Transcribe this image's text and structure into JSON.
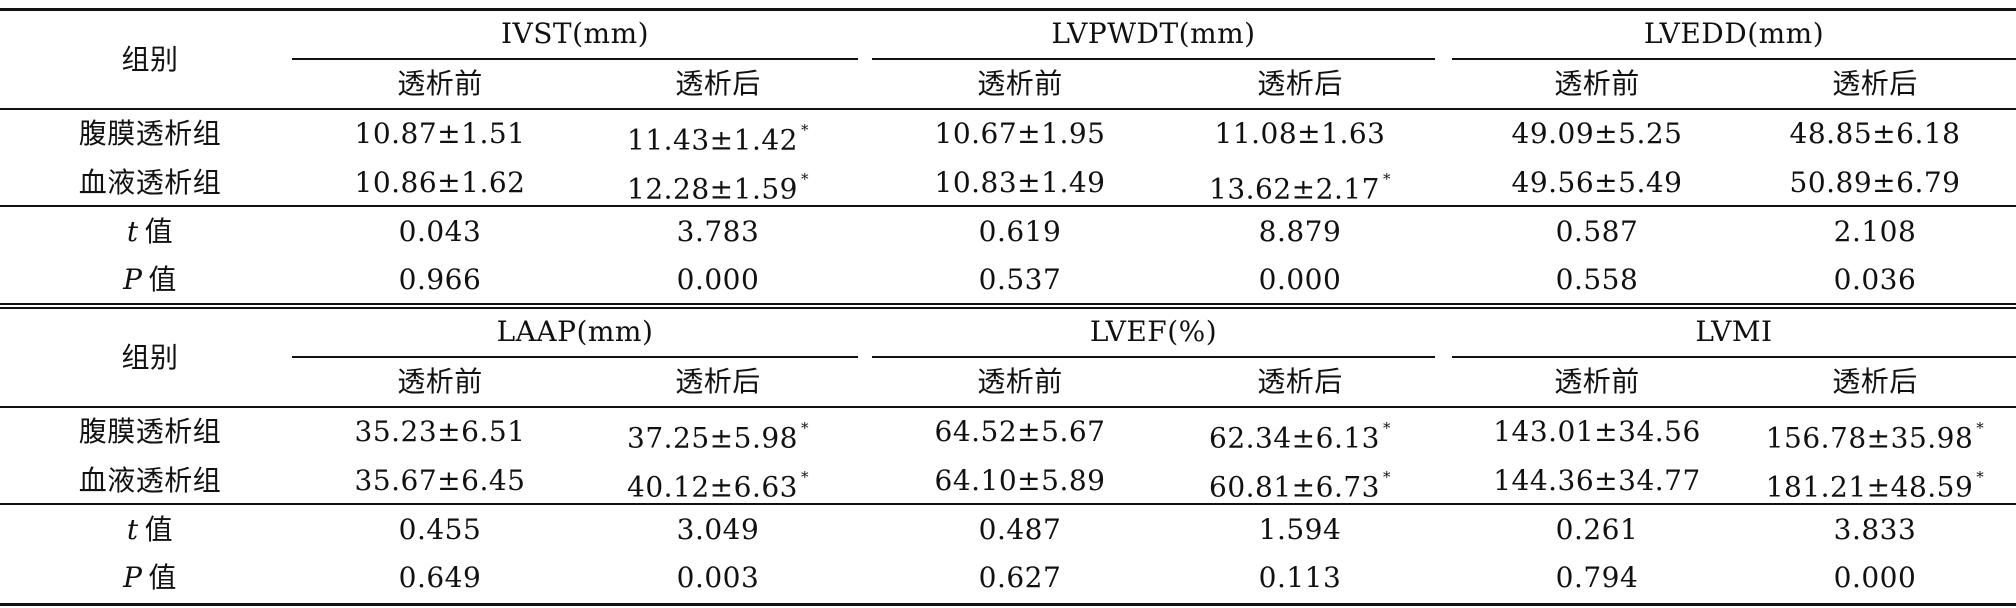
{
  "blocks": [
    {
      "row_header": "组别",
      "groups": [
        {
          "label": "IVST(mm)",
          "sub": [
            "透析前",
            "透析后"
          ]
        },
        {
          "label": "LVPWDT(mm)",
          "sub": [
            "透析前",
            "透析后"
          ]
        },
        {
          "label": "LVEDD(mm)",
          "sub": [
            "透析前",
            "透析后"
          ]
        }
      ],
      "rows": [
        {
          "label": "腹膜透析组",
          "cells": [
            {
              "v": "10.87±1.51",
              "m": ""
            },
            {
              "v": "11.43±1.42",
              "m": "*"
            },
            {
              "v": "10.67±1.95",
              "m": ""
            },
            {
              "v": "11.08±1.63",
              "m": ""
            },
            {
              "v": "49.09±5.25",
              "m": ""
            },
            {
              "v": "48.85±6.18",
              "m": ""
            }
          ]
        },
        {
          "label": "血液透析组",
          "cells": [
            {
              "v": "10.86±1.62",
              "m": ""
            },
            {
              "v": "12.28±1.59",
              "m": "*"
            },
            {
              "v": "10.83±1.49",
              "m": ""
            },
            {
              "v": "13.62±2.17",
              "m": "*"
            },
            {
              "v": "49.56±5.49",
              "m": ""
            },
            {
              "v": "50.89±6.79",
              "m": ""
            }
          ]
        }
      ],
      "stats": [
        {
          "sym": "t",
          "suffix": "值",
          "cells": [
            "0.043",
            "3.783",
            "0.619",
            "8.879",
            "0.587",
            "2.108"
          ]
        },
        {
          "sym": "P",
          "suffix": "值",
          "cells": [
            "0.966",
            "0.000",
            "0.537",
            "0.000",
            "0.558",
            "0.036"
          ]
        }
      ]
    },
    {
      "row_header": "组别",
      "groups": [
        {
          "label": "LAAP(mm)",
          "sub": [
            "透析前",
            "透析后"
          ]
        },
        {
          "label": "LVEF(%)",
          "sub": [
            "透析前",
            "透析后"
          ]
        },
        {
          "label": "LVMI",
          "sub": [
            "透析前",
            "透析后"
          ]
        }
      ],
      "rows": [
        {
          "label": "腹膜透析组",
          "cells": [
            {
              "v": "35.23±6.51",
              "m": ""
            },
            {
              "v": "37.25±5.98",
              "m": "*"
            },
            {
              "v": "64.52±5.67",
              "m": ""
            },
            {
              "v": "62.34±6.13",
              "m": "*"
            },
            {
              "v": "143.01±34.56",
              "m": ""
            },
            {
              "v": "156.78±35.98",
              "m": "*"
            }
          ]
        },
        {
          "label": "血液透析组",
          "cells": [
            {
              "v": "35.67±6.45",
              "m": ""
            },
            {
              "v": "40.12±6.63",
              "m": "*"
            },
            {
              "v": "64.10±5.89",
              "m": ""
            },
            {
              "v": "60.81±6.73",
              "m": "*"
            },
            {
              "v": "144.36±34.77",
              "m": ""
            },
            {
              "v": "181.21±48.59",
              "m": "*"
            }
          ]
        }
      ],
      "stats": [
        {
          "sym": "t",
          "suffix": "值",
          "cells": [
            "0.455",
            "3.049",
            "0.487",
            "1.594",
            "0.261",
            "3.833"
          ]
        },
        {
          "sym": "P",
          "suffix": "值",
          "cells": [
            "0.649",
            "0.003",
            "0.627",
            "0.113",
            "0.794",
            "0.000"
          ]
        }
      ]
    }
  ]
}
